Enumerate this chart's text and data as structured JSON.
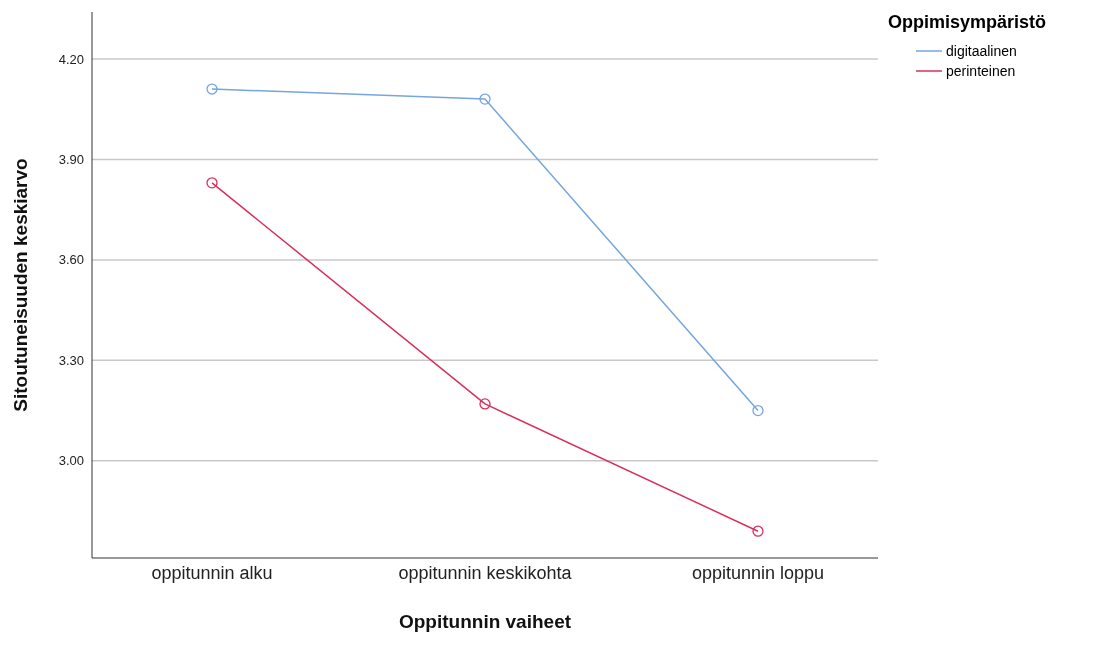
{
  "chart_data": {
    "type": "line",
    "xlabel": "Oppitunnin vaiheet",
    "ylabel": "Sitoutuneisuuden keskiarvo",
    "legend_title": "Oppimisympäristö",
    "categories": [
      "oppitunnin alku",
      "oppitunnin keskikohta",
      "oppitunnin loppu"
    ],
    "series": [
      {
        "name": "digitaalinen",
        "color": "#76a5e0",
        "values": [
          4.11,
          4.08,
          3.15
        ]
      },
      {
        "name": "perinteinen",
        "color": "#d9305c",
        "values": [
          3.83,
          3.17,
          2.79
        ]
      }
    ],
    "ylim": [
      2.71,
      4.34
    ],
    "yticks": [
      {
        "value": 3.0,
        "label": "3.00"
      },
      {
        "value": 3.3,
        "label": "3.30"
      },
      {
        "value": 3.6,
        "label": "3.60"
      },
      {
        "value": 3.9,
        "label": "3.90"
      },
      {
        "value": 4.2,
        "label": "4.20"
      }
    ],
    "grid": "y",
    "legend": "top right",
    "marker": "circle",
    "line_style": "solid"
  }
}
